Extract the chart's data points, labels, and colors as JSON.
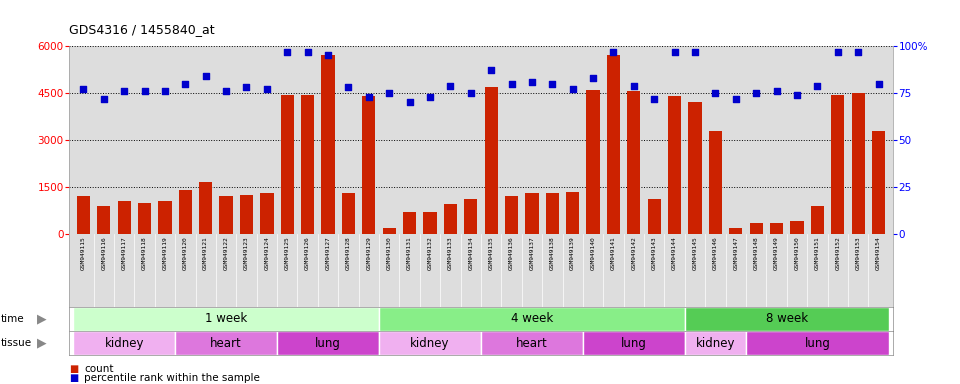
{
  "title": "GDS4316 / 1455840_at",
  "samples": [
    "GSM949115",
    "GSM949116",
    "GSM949117",
    "GSM949118",
    "GSM949119",
    "GSM949120",
    "GSM949121",
    "GSM949122",
    "GSM949123",
    "GSM949124",
    "GSM949125",
    "GSM949126",
    "GSM949127",
    "GSM949128",
    "GSM949129",
    "GSM949130",
    "GSM949131",
    "GSM949132",
    "GSM949133",
    "GSM949134",
    "GSM949135",
    "GSM949136",
    "GSM949137",
    "GSM949138",
    "GSM949139",
    "GSM949140",
    "GSM949141",
    "GSM949142",
    "GSM949143",
    "GSM949144",
    "GSM949145",
    "GSM949146",
    "GSM949147",
    "GSM949148",
    "GSM949149",
    "GSM949150",
    "GSM949151",
    "GSM949152",
    "GSM949153",
    "GSM949154"
  ],
  "counts": [
    1200,
    900,
    1050,
    1000,
    1050,
    1400,
    1650,
    1200,
    1250,
    1300,
    4450,
    4450,
    5700,
    1300,
    4400,
    200,
    700,
    700,
    950,
    1100,
    4700,
    1200,
    1300,
    1300,
    1350,
    4600,
    5700,
    4550,
    1100,
    4400,
    4200,
    3300,
    200,
    350,
    350,
    400,
    900,
    4450,
    4500,
    3300
  ],
  "percentiles": [
    77,
    72,
    76,
    76,
    76,
    80,
    84,
    76,
    78,
    77,
    97,
    97,
    95,
    78,
    73,
    75,
    70,
    73,
    79,
    75,
    87,
    80,
    81,
    80,
    77,
    83,
    97,
    79,
    72,
    97,
    97,
    75,
    72,
    75,
    76,
    74,
    79,
    97,
    97,
    80
  ],
  "ylim_left": [
    0,
    6000
  ],
  "ylim_right": [
    0,
    100
  ],
  "yticks_left": [
    0,
    1500,
    3000,
    4500,
    6000
  ],
  "yticks_right": [
    0,
    25,
    50,
    75,
    100
  ],
  "bar_color": "#cc2200",
  "dot_color": "#0000cc",
  "plot_bg": "#dddddd",
  "time_groups": [
    {
      "label": "1 week",
      "start": 0,
      "end": 15,
      "color": "#ccffcc"
    },
    {
      "label": "4 week",
      "start": 15,
      "end": 30,
      "color": "#88ee88"
    },
    {
      "label": "8 week",
      "start": 30,
      "end": 40,
      "color": "#55cc55"
    }
  ],
  "tissue_groups": [
    {
      "label": "kidney",
      "start": 0,
      "end": 5,
      "color": "#f0b0f0"
    },
    {
      "label": "heart",
      "start": 5,
      "end": 10,
      "color": "#dd77dd"
    },
    {
      "label": "lung",
      "start": 10,
      "end": 15,
      "color": "#cc44cc"
    },
    {
      "label": "kidney",
      "start": 15,
      "end": 20,
      "color": "#f0b0f0"
    },
    {
      "label": "heart",
      "start": 20,
      "end": 25,
      "color": "#dd77dd"
    },
    {
      "label": "lung",
      "start": 25,
      "end": 30,
      "color": "#cc44cc"
    },
    {
      "label": "kidney",
      "start": 30,
      "end": 33,
      "color": "#f0b0f0"
    },
    {
      "label": "lung",
      "start": 33,
      "end": 40,
      "color": "#cc44cc"
    }
  ],
  "bar_color_legend": "#cc2200",
  "dot_color_legend": "#0000cc"
}
